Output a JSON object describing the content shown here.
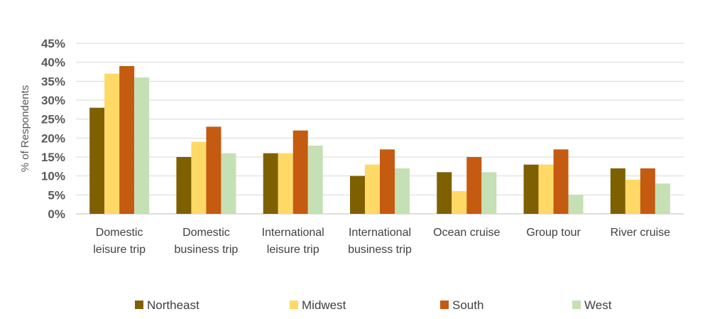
{
  "chart_data": {
    "type": "bar",
    "title": "",
    "xlabel": "",
    "ylabel": "% of Respondents",
    "ylim": [
      0,
      45
    ],
    "yticks": [
      "0%",
      "5%",
      "10%",
      "15%",
      "20%",
      "25%",
      "30%",
      "35%",
      "40%",
      "45%"
    ],
    "grid": true,
    "legend_position": "bottom",
    "categories": [
      [
        "Domestic",
        "leisure trip"
      ],
      [
        "Domestic",
        "business trip"
      ],
      [
        "International",
        "leisure trip"
      ],
      [
        "International",
        "business trip"
      ],
      [
        "Ocean cruise"
      ],
      [
        "Group tour"
      ],
      [
        "River cruise"
      ]
    ],
    "series": [
      {
        "name": "Northeast",
        "color": "#7f6000",
        "values": [
          28,
          15,
          16,
          10,
          11,
          13,
          12
        ]
      },
      {
        "name": "Midwest",
        "color": "#ffd966",
        "values": [
          37,
          19,
          16,
          13,
          6,
          13,
          9
        ]
      },
      {
        "name": "South",
        "color": "#c55a11",
        "values": [
          39,
          23,
          22,
          17,
          15,
          17,
          12
        ]
      },
      {
        "name": "West",
        "color": "#c5e0b4",
        "values": [
          36,
          16,
          18,
          12,
          11,
          5,
          8
        ]
      }
    ]
  }
}
